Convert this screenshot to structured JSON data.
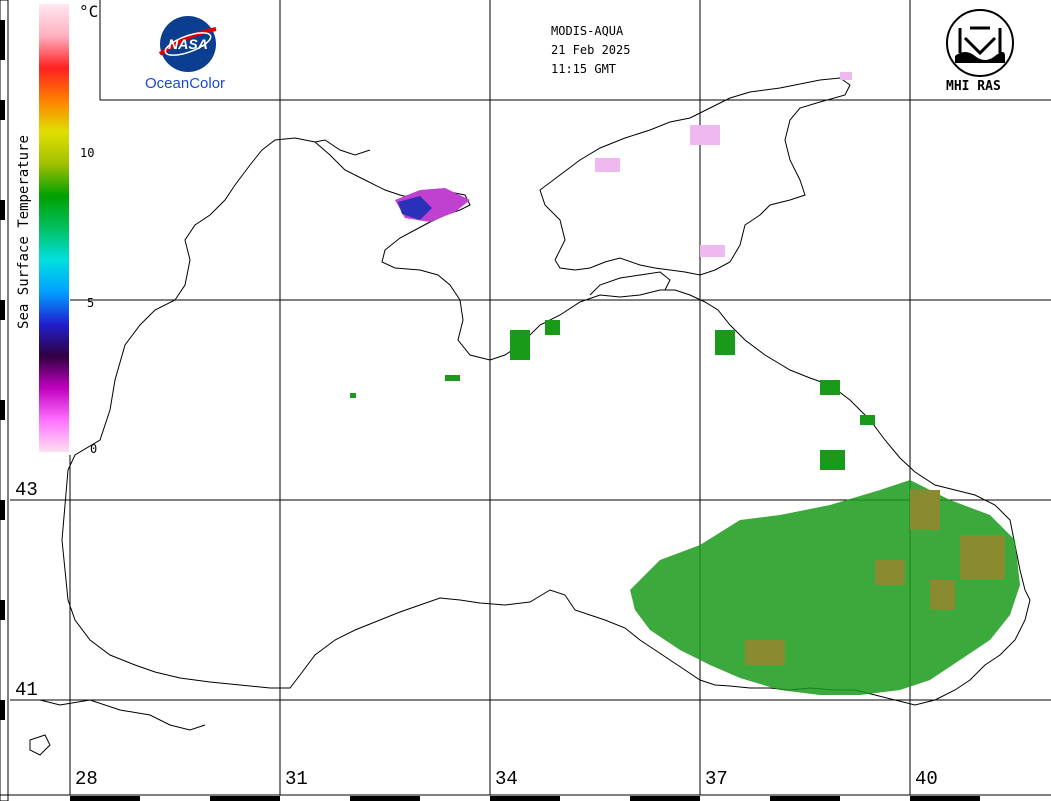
{
  "header": {
    "sensor": "MODIS-AQUA",
    "date": "21 Feb 2025",
    "time": "11:15 GMT"
  },
  "logos": {
    "nasa_text": "NASA",
    "oceancolor": "OceanColor",
    "mhi": "MHI RAS"
  },
  "legend": {
    "title": "Sea Surface Temperature",
    "unit": "°C",
    "ticks": [
      "10",
      "5",
      "0"
    ],
    "colors": [
      "#ffe0f0",
      "#ff70ff",
      "#c000c0",
      "#300040",
      "#2020d0",
      "#00a0ff",
      "#00e0e0",
      "#00c060",
      "#00a000",
      "#a0c000",
      "#e0e000",
      "#ff8000",
      "#ff2020",
      "#ffb0c0",
      "#ffe8f0"
    ]
  },
  "latitudes": [
    "43",
    "41"
  ],
  "longitudes": [
    "28",
    "31",
    "34",
    "37",
    "40"
  ],
  "colors": {
    "coast": "#000000",
    "grid": "#000000",
    "sst_green": "#1a9a1a",
    "sst_olive": "#8a8a30",
    "sst_magenta": "#c030d0",
    "sst_blue": "#2030c0",
    "sst_pink": "#f0b0f0"
  }
}
